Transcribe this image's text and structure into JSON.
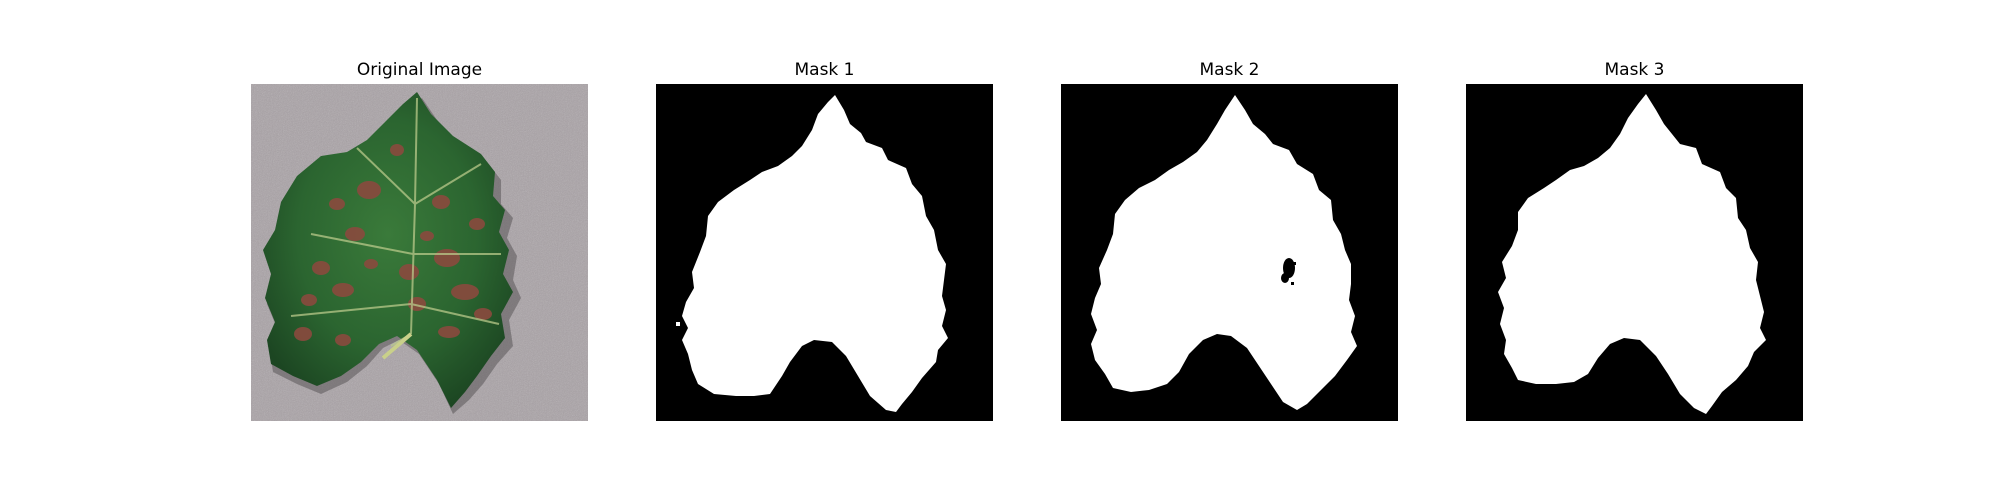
{
  "figure": {
    "panels": [
      {
        "title": "Original Image",
        "kind": "photo"
      },
      {
        "title": "Mask 1",
        "kind": "mask"
      },
      {
        "title": "Mask 2",
        "kind": "mask"
      },
      {
        "title": "Mask 3",
        "kind": "mask"
      }
    ]
  },
  "colors": {
    "background": "#ffffff",
    "mask_fg": "#ffffff",
    "mask_bg": "#000000",
    "surface": "#a9a2a6",
    "leaf_dark": "#1f4a23",
    "leaf_mid": "#2e6a30",
    "lesion": "#8a4a3e",
    "vein": "#b9c98a"
  }
}
